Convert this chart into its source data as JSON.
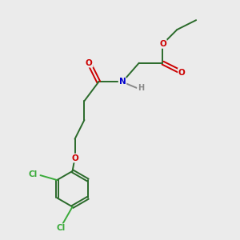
{
  "background_color": "#ebebeb",
  "bond_color": "#2a6a2a",
  "oxygen_color": "#cc0000",
  "nitrogen_color": "#0000cc",
  "chlorine_color": "#3aaa3a",
  "hydrogen_color": "#888888",
  "figsize": [
    3.0,
    3.0
  ],
  "dpi": 100,
  "xlim": [
    0,
    10
  ],
  "ylim": [
    0,
    10
  ]
}
